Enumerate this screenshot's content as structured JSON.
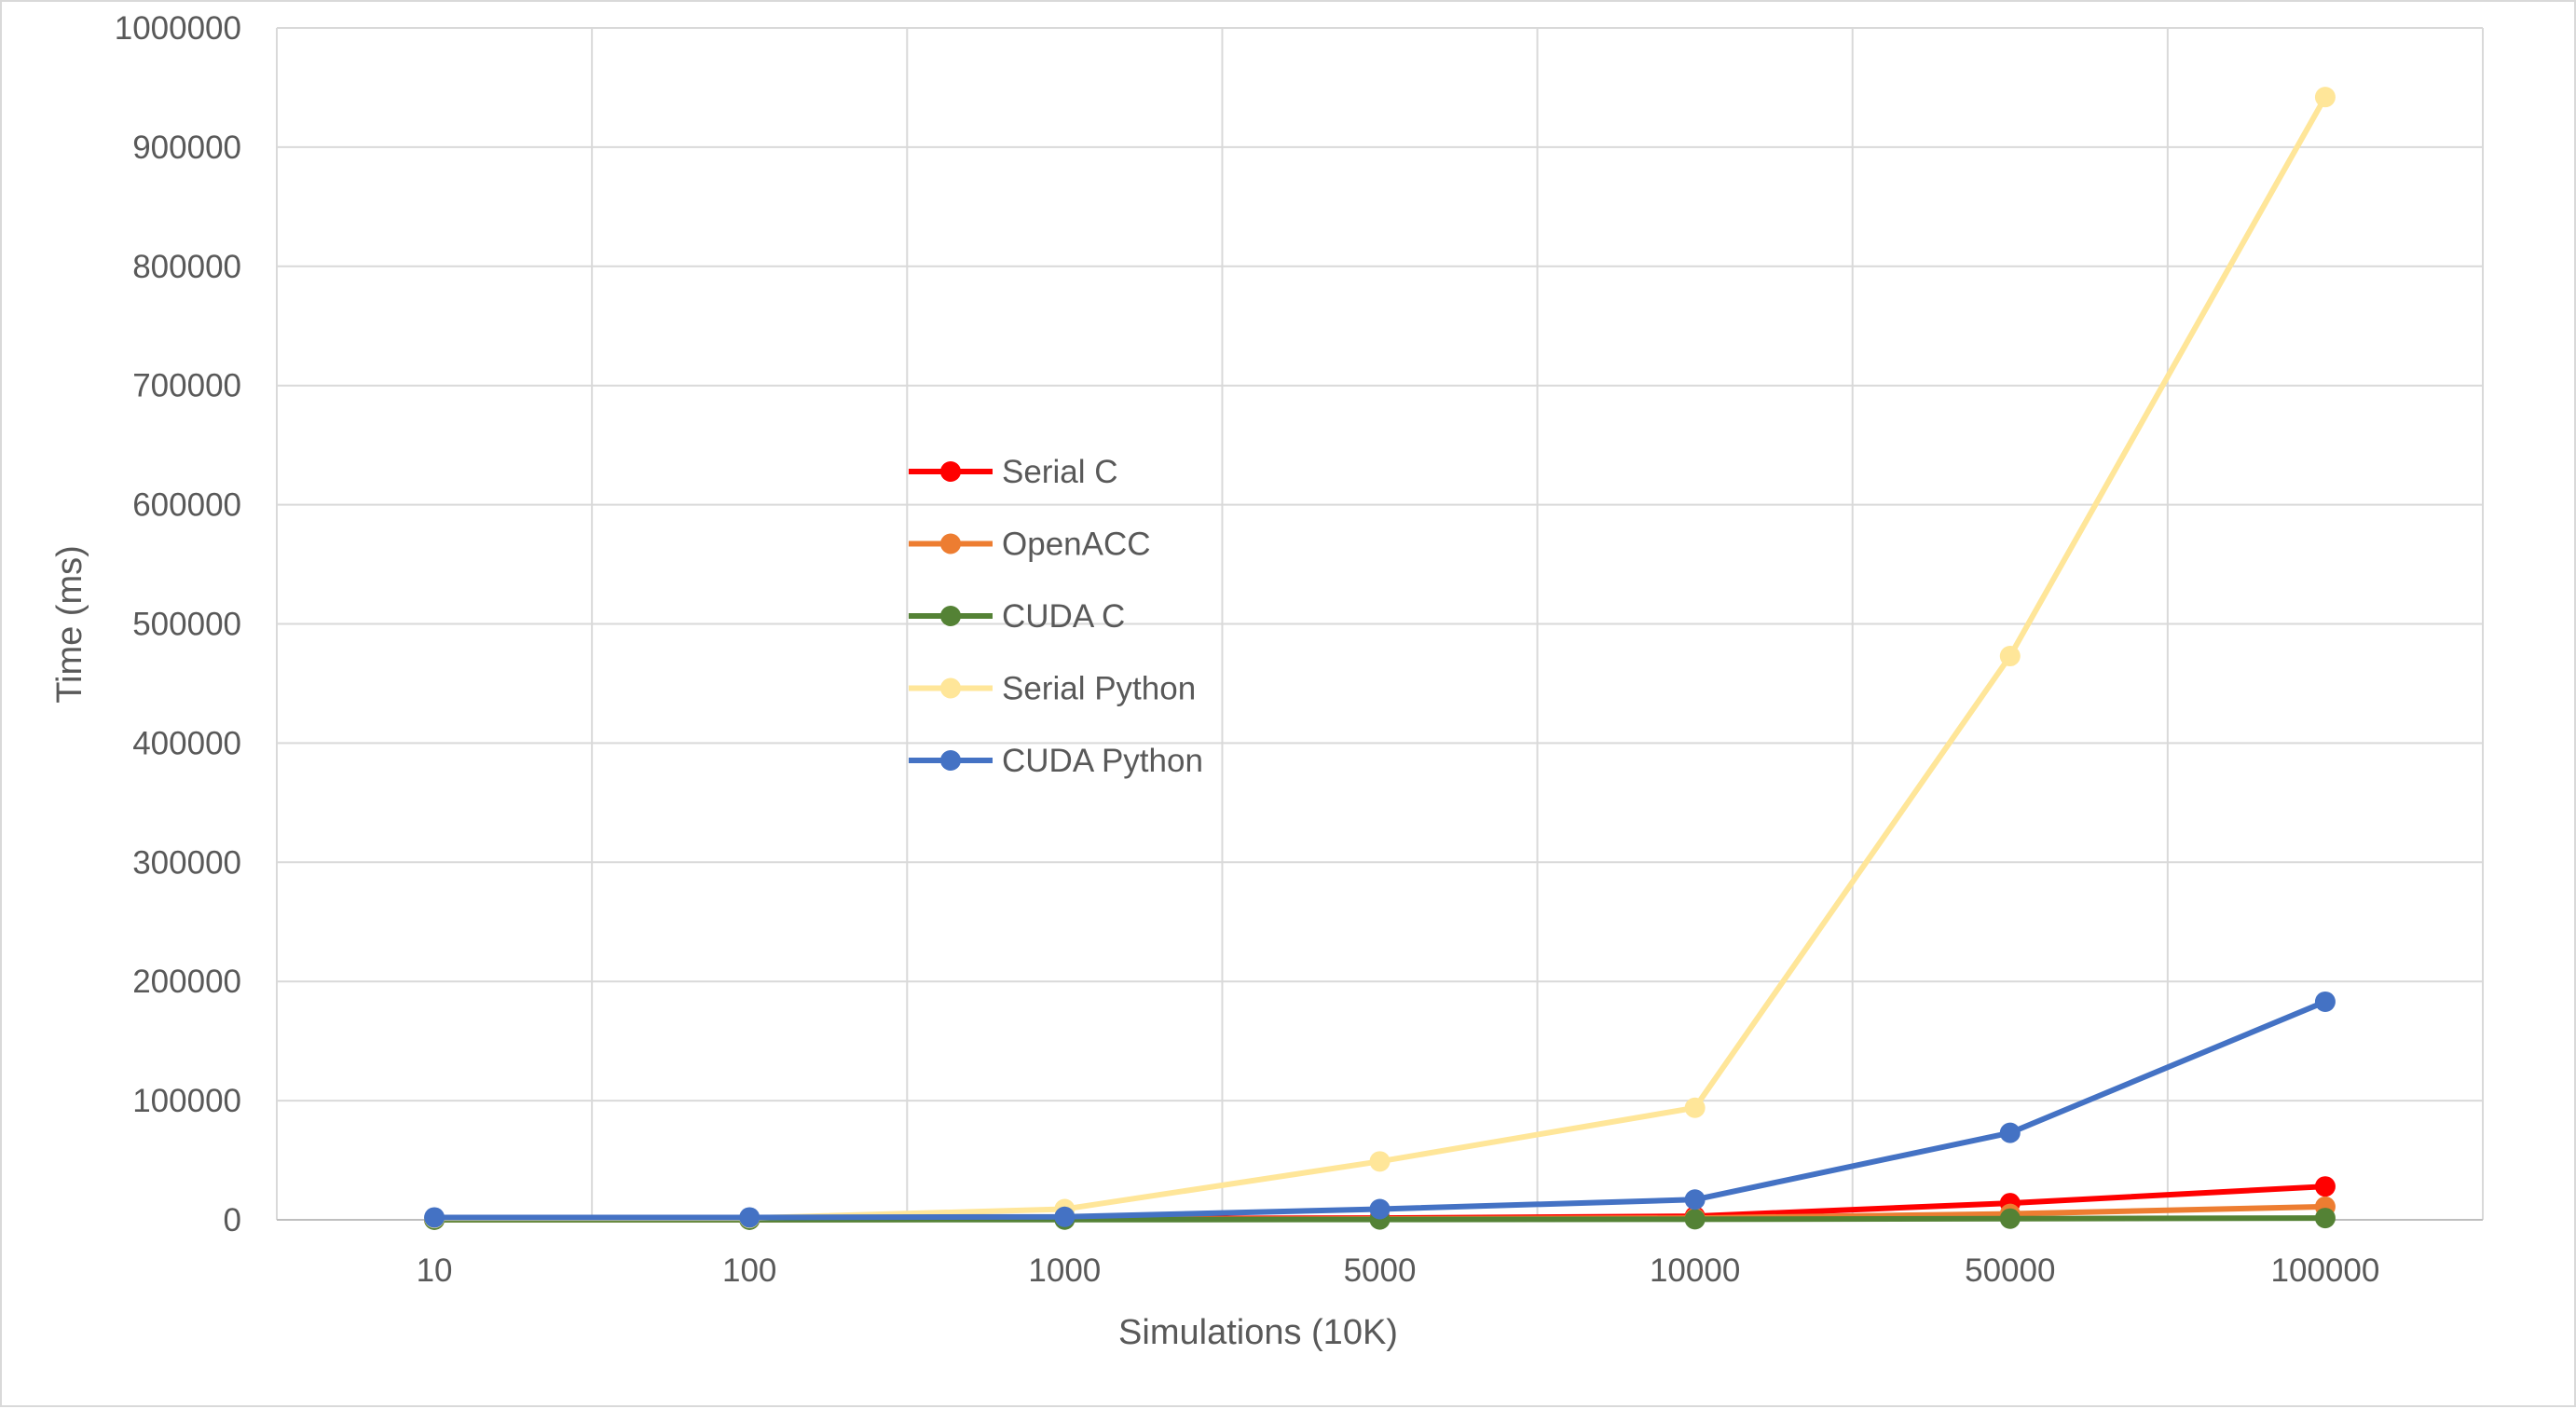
{
  "chart_data": {
    "type": "line",
    "title": "",
    "xlabel": "Simulations (10K)",
    "ylabel": "Time (ms)",
    "categories": [
      "10",
      "100",
      "1000",
      "5000",
      "10000",
      "50000",
      "100000"
    ],
    "ylim": [
      0,
      1000000
    ],
    "yticks": [
      "0",
      "100000",
      "200000",
      "300000",
      "400000",
      "500000",
      "600000",
      "700000",
      "800000",
      "900000",
      "1000000"
    ],
    "grid": true,
    "legend_position": "center-left",
    "series": [
      {
        "name": "Serial C",
        "color": "#ff0000",
        "values": [
          300,
          300,
          800,
          1500,
          3000,
          14000,
          28000
        ]
      },
      {
        "name": "OpenACC",
        "color": "#ed7d31",
        "values": [
          200,
          200,
          500,
          800,
          1500,
          5000,
          11000
        ]
      },
      {
        "name": "CUDA C",
        "color": "#548235",
        "values": [
          100,
          100,
          200,
          300,
          500,
          1000,
          1500
        ]
      },
      {
        "name": "Serial Python",
        "color": "#ffe699",
        "values": [
          1500,
          1500,
          9000,
          49000,
          94000,
          473000,
          942000
        ]
      },
      {
        "name": "CUDA Python",
        "color": "#4472c4",
        "values": [
          2000,
          2000,
          2500,
          9000,
          17000,
          73000,
          183000
        ]
      }
    ]
  }
}
